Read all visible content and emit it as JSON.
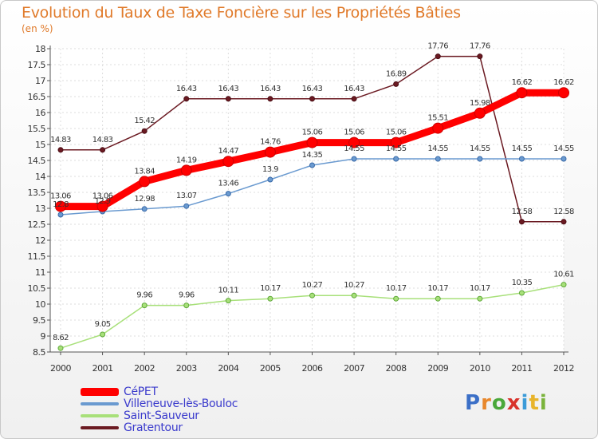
{
  "header": {
    "title": "Evolution du Taux de Taxe Foncière sur les Propriétés Bâties",
    "unit": "(en %)"
  },
  "logo": {
    "letters": [
      "P",
      "r",
      "o",
      "x",
      "i",
      "t",
      "i"
    ],
    "colors": [
      "#3b6fc7",
      "#e8872b",
      "#4aa83a",
      "#d8322b",
      "#3b9bd8",
      "#e8b42b",
      "#7ab33b"
    ]
  },
  "chart_data": {
    "type": "line",
    "title": "Evolution du Taux de Taxe Foncière sur les Propriétés Bâties",
    "ylabel": "(en %)",
    "xlabel": "",
    "ylim": [
      8.5,
      18
    ],
    "yticks": [
      "8.5",
      "9",
      "9.5",
      "10",
      "10.5",
      "11",
      "11.5",
      "12",
      "12.5",
      "13",
      "13.5",
      "14",
      "14.5",
      "15",
      "15.5",
      "16",
      "16.5",
      "17",
      "17.5",
      "18"
    ],
    "x": [
      "2000",
      "2001",
      "2002",
      "2003",
      "2004",
      "2005",
      "2006",
      "2007",
      "2008",
      "2009",
      "2010",
      "2011",
      "2012"
    ],
    "series": [
      {
        "name": "Gratentour",
        "color": "#6b1a22",
        "values": [
          14.83,
          14.83,
          15.42,
          16.43,
          16.43,
          16.43,
          16.43,
          16.43,
          16.89,
          17.76,
          17.76,
          12.58,
          12.58
        ],
        "labels": [
          "14.83",
          "14.83",
          "15.42",
          "16.43",
          "16.43",
          "16.43",
          "16.43",
          "16.43",
          "16.89",
          "17.76",
          "17.76",
          "12.58",
          "12.58"
        ]
      },
      {
        "name": "Saint-Sauveur",
        "color": "#a8e07a",
        "values": [
          8.62,
          9.05,
          9.96,
          9.96,
          10.11,
          10.17,
          10.27,
          10.27,
          10.17,
          10.17,
          10.17,
          10.35,
          10.61
        ],
        "labels": [
          "8.62",
          "9.05",
          "9.96",
          "9.96",
          "10.11",
          "10.17",
          "10.27",
          "10.27",
          "10.17",
          "10.17",
          "10.17",
          "10.35",
          "10.61"
        ]
      },
      {
        "name": "Villeneuve-lès-Bouloc",
        "color": "#6a9ad0",
        "values": [
          12.8,
          12.9,
          12.98,
          13.07,
          13.46,
          13.9,
          14.35,
          14.55,
          14.55,
          14.55,
          14.55,
          14.55,
          14.55
        ],
        "labels": [
          "12.8",
          "12.9",
          "12.98",
          "13.07",
          "13.46",
          "13.9",
          "14.35",
          "14.55",
          "14.55",
          "14.55",
          "14.55",
          "14.55",
          "14.55"
        ]
      },
      {
        "name": "CéPET",
        "color": "#ff0000",
        "values": [
          13.06,
          13.06,
          13.84,
          14.19,
          14.47,
          14.76,
          15.06,
          15.06,
          15.06,
          15.51,
          15.98,
          16.62,
          16.62
        ],
        "labels": [
          "13.06",
          "13.06",
          "13.84",
          "14.19",
          "14.47",
          "14.76",
          "15.06",
          "15.06",
          "15.06",
          "15.51",
          "15.98",
          "16.62",
          "16.62"
        ]
      }
    ],
    "legend": [
      {
        "name": "CéPET",
        "color": "#ff0000"
      },
      {
        "name": "Villeneuve-lès-Bouloc",
        "color": "#6a9ad0"
      },
      {
        "name": "Saint-Sauveur",
        "color": "#a8e07a"
      },
      {
        "name": "Gratentour",
        "color": "#6b1a22"
      }
    ]
  }
}
